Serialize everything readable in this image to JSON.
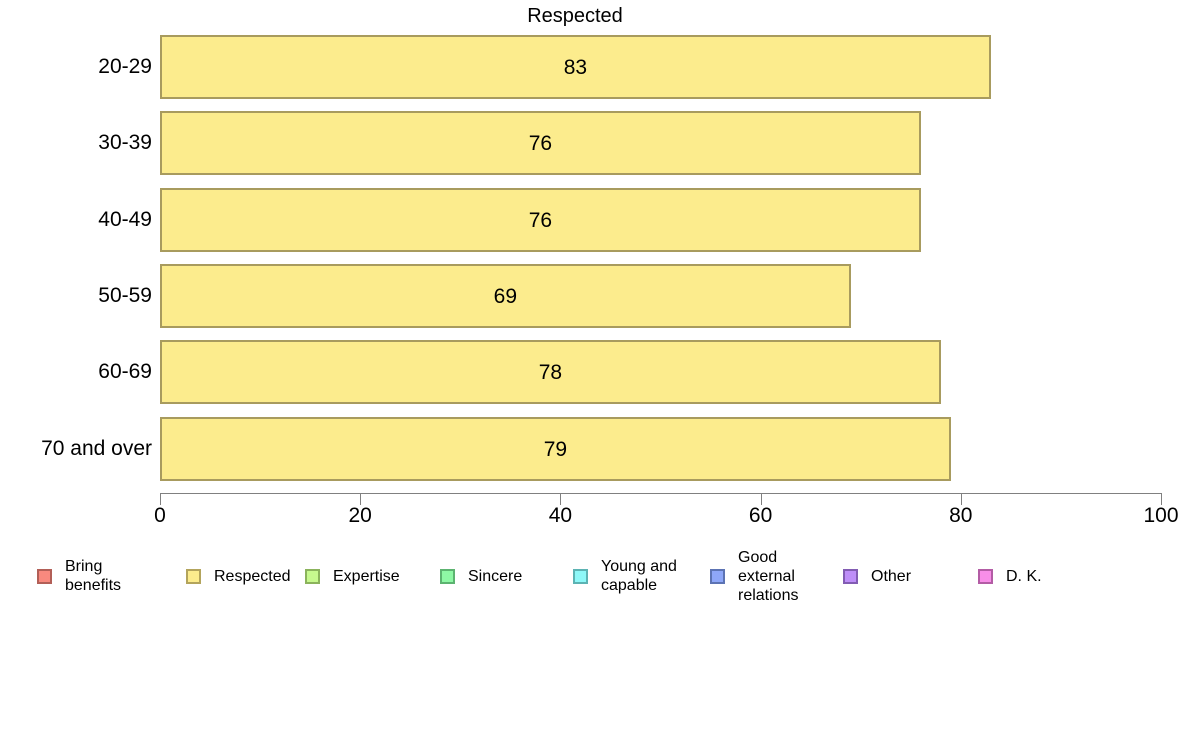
{
  "chart_data": {
    "type": "bar",
    "orientation": "horizontal",
    "title": "Respected",
    "categories": [
      "20-29",
      "30-39",
      "40-49",
      "50-59",
      "60-69",
      "70 and over"
    ],
    "values": [
      83,
      76,
      76,
      69,
      78,
      79
    ],
    "xlabel": "",
    "ylabel": "",
    "xlim": [
      0,
      100
    ],
    "xticks": [
      0,
      20,
      40,
      60,
      80,
      100
    ],
    "grid": false,
    "bar_label_position": "center",
    "legend_position": "bottom",
    "colors": {
      "bar_fill": "#FCEC8D",
      "bar_border": "#A89B5E",
      "axis": "#808080",
      "text": "#000000"
    },
    "legend": [
      {
        "label": "Bring\nbenefits",
        "fill": "#F8897E",
        "border": "#B25F57"
      },
      {
        "label": "Respected",
        "fill": "#FCEC8D",
        "border": "#B3A45C"
      },
      {
        "label": "Expertise",
        "fill": "#C7F98E",
        "border": "#8BB35C"
      },
      {
        "label": "Sincere",
        "fill": "#8EF8A5",
        "border": "#5CB370"
      },
      {
        "label": "Young and\ncapable",
        "fill": "#8EF8F8",
        "border": "#5CB3B3"
      },
      {
        "label": "Good\nexternal\nrelations",
        "fill": "#8EA7F8",
        "border": "#5C73B3"
      },
      {
        "label": "Other",
        "fill": "#BE8EF8",
        "border": "#825CB3"
      },
      {
        "label": "D. K.",
        "fill": "#F88EE8",
        "border": "#B35CA5"
      }
    ]
  }
}
